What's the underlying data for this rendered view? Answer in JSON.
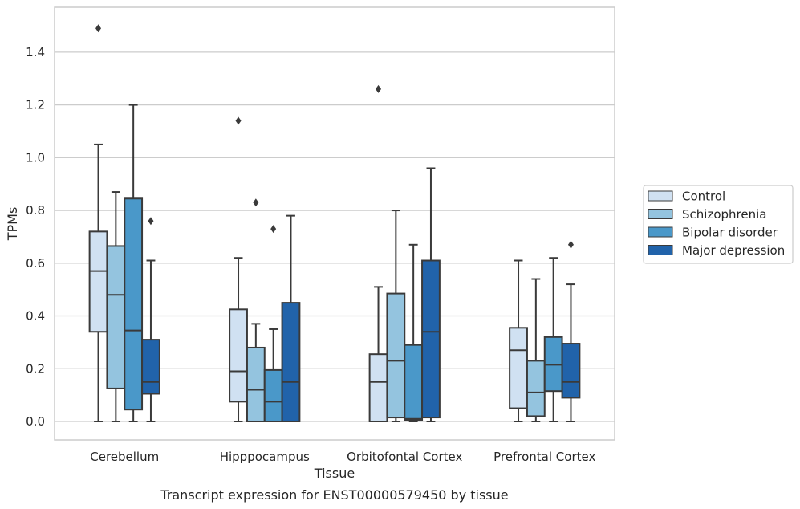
{
  "chart_data": {
    "type": "box",
    "xlabel": "Tissue",
    "ylabel": "TPMs",
    "caption": "Transcript expression for ENST00000579450 by tissue",
    "ylim": [
      -0.07,
      1.57
    ],
    "yticks": [
      0.0,
      0.2,
      0.4,
      0.6,
      0.8,
      1.0,
      1.2,
      1.4
    ],
    "ytick_labels": [
      "0.0",
      "0.2",
      "0.4",
      "0.6",
      "0.8",
      "1.0",
      "1.2",
      "1.4"
    ],
    "grid": "horizontal",
    "legend_position": "right",
    "categories": [
      "Cerebellum",
      "Hipppocampus",
      "Orbitofontal Cortex",
      "Prefrontal Cortex"
    ],
    "series": [
      {
        "name": "Control",
        "color": "#d0e1f2",
        "boxes": [
          {
            "whislo": 0.0,
            "q1": 0.34,
            "med": 0.57,
            "q3": 0.72,
            "whishi": 1.05,
            "fliers": [
              1.49
            ]
          },
          {
            "whislo": 0.0,
            "q1": 0.075,
            "med": 0.19,
            "q3": 0.425,
            "whishi": 0.62,
            "fliers": [
              1.14
            ]
          },
          {
            "whislo": 0.0,
            "q1": 0.0,
            "med": 0.15,
            "q3": 0.255,
            "whishi": 0.51,
            "fliers": [
              1.26
            ]
          },
          {
            "whislo": 0.0,
            "q1": 0.05,
            "med": 0.27,
            "q3": 0.355,
            "whishi": 0.61,
            "fliers": []
          }
        ]
      },
      {
        "name": "Schizophrenia",
        "color": "#94c4df",
        "boxes": [
          {
            "whislo": 0.0,
            "q1": 0.125,
            "med": 0.48,
            "q3": 0.665,
            "whishi": 0.87,
            "fliers": []
          },
          {
            "whislo": 0.0,
            "q1": 0.0,
            "med": 0.12,
            "q3": 0.28,
            "whishi": 0.37,
            "fliers": [
              0.83
            ]
          },
          {
            "whislo": 0.0,
            "q1": 0.015,
            "med": 0.23,
            "q3": 0.485,
            "whishi": 0.8,
            "fliers": []
          },
          {
            "whislo": 0.0,
            "q1": 0.02,
            "med": 0.11,
            "q3": 0.23,
            "whishi": 0.54,
            "fliers": []
          }
        ]
      },
      {
        "name": "Bipolar disorder",
        "color": "#4a98c9",
        "boxes": [
          {
            "whislo": 0.0,
            "q1": 0.045,
            "med": 0.345,
            "q3": 0.845,
            "whishi": 1.2,
            "fliers": []
          },
          {
            "whislo": 0.0,
            "q1": 0.0,
            "med": 0.075,
            "q3": 0.195,
            "whishi": 0.35,
            "fliers": [
              0.73
            ]
          },
          {
            "whislo": 0.0,
            "q1": 0.005,
            "med": 0.01,
            "q3": 0.29,
            "whishi": 0.67,
            "fliers": []
          },
          {
            "whislo": 0.0,
            "q1": 0.115,
            "med": 0.215,
            "q3": 0.32,
            "whishi": 0.62,
            "fliers": []
          }
        ]
      },
      {
        "name": "Major depression",
        "color": "#2163aa",
        "boxes": [
          {
            "whislo": 0.0,
            "q1": 0.105,
            "med": 0.15,
            "q3": 0.31,
            "whishi": 0.61,
            "fliers": [
              0.76
            ]
          },
          {
            "whislo": 0.0,
            "q1": 0.0,
            "med": 0.15,
            "q3": 0.45,
            "whishi": 0.78,
            "fliers": []
          },
          {
            "whislo": 0.0,
            "q1": 0.015,
            "med": 0.34,
            "q3": 0.61,
            "whishi": 0.96,
            "fliers": []
          },
          {
            "whislo": 0.0,
            "q1": 0.09,
            "med": 0.15,
            "q3": 0.295,
            "whishi": 0.52,
            "fliers": [
              0.67
            ]
          }
        ]
      }
    ]
  }
}
